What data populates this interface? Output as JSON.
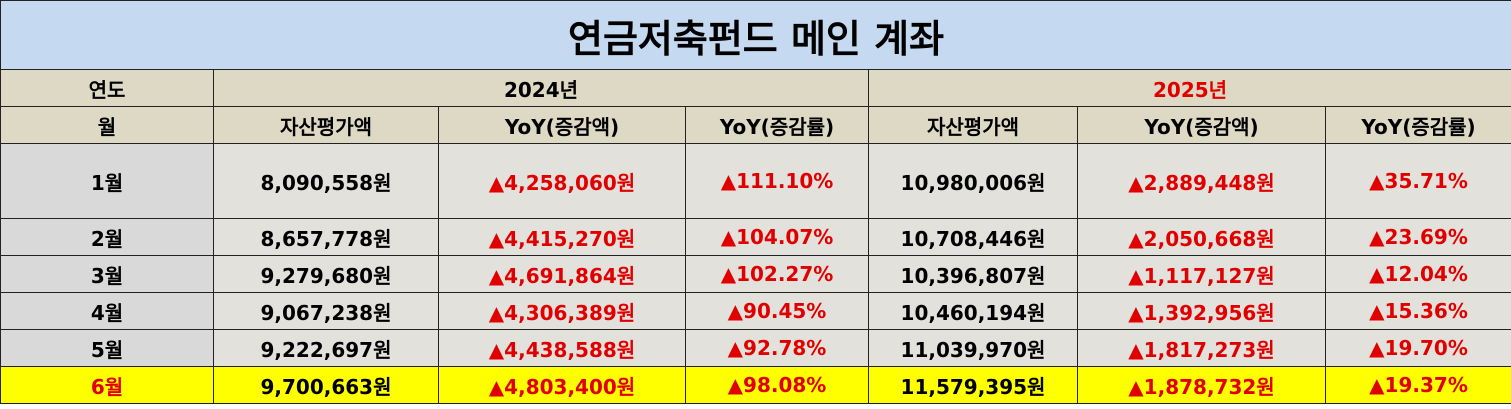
{
  "title": "연금저축펀드 메인 계좌",
  "header": {
    "year_label": "연도",
    "years": [
      "2024년",
      "2025년"
    ],
    "month_label": "월",
    "columns": [
      "자산평가액",
      "YoY(증감액)",
      "YoY(증감률)",
      "자산평가액",
      "YoY(증감액)",
      "YoY(증감률)"
    ]
  },
  "table": {
    "rows": [
      [
        "1월",
        "8,090,558원",
        "▲4,258,060원",
        "▲111.10%",
        "10,980,006원",
        "▲2,889,448원",
        "▲35.71%"
      ],
      [
        "2월",
        "8,657,778원",
        "▲4,415,270원",
        "▲104.07%",
        "10,708,446원",
        "▲2,050,668원",
        "▲23.69%"
      ],
      [
        "3월",
        "9,279,680원",
        "▲4,691,864원",
        "▲102.27%",
        "10,396,807원",
        "▲1,117,127원",
        "▲12.04%"
      ],
      [
        "4월",
        "9,067,238원",
        "▲4,306,389원",
        "▲90.45%",
        "10,460,194원",
        "▲1,392,956원",
        "▲15.36%"
      ],
      [
        "5월",
        "9,222,697원",
        "▲4,438,588원",
        "▲92.78%",
        "11,039,970원",
        "▲1,817,273원",
        "▲19.70%"
      ],
      [
        "6월",
        "9,700,663원",
        "▲4,803,400원",
        "▲98.08%",
        "11,579,395원",
        "▲1,878,732원",
        "▲19.37%"
      ]
    ]
  }
}
